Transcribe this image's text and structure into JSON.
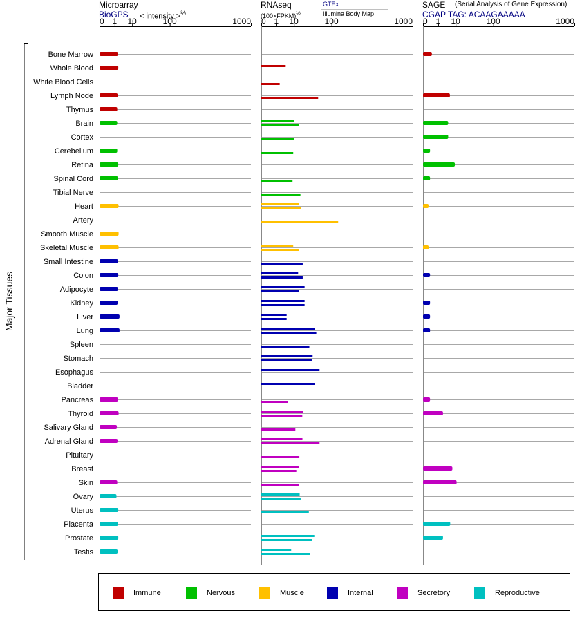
{
  "y_title": "Major Tissues",
  "panels": [
    {
      "title": "Microarray",
      "subtitle": "BioGPS",
      "scale_label": "< intensity >",
      "scale_exp": "⅔",
      "ticks": [
        "0",
        "1",
        "10",
        "100",
        "1000"
      ]
    },
    {
      "title": "RNAseq",
      "subtitle": "(100×FPKM)",
      "subtitle_exp": "½",
      "source_top": "GTEx",
      "source_bottom": "Illumina Body Map",
      "ticks": [
        "0",
        "1",
        "10",
        "100",
        "1000"
      ]
    },
    {
      "title": "SAGE",
      "title_note": "(Serial Analysis of Gene Expression)",
      "subtitle": "CGAP TAG: ACAAGAAAAA",
      "ticks": [
        "0",
        "1",
        "10",
        "100",
        "1000"
      ]
    }
  ],
  "legend": [
    {
      "label": "Immune",
      "color": "#c00000"
    },
    {
      "label": "Nervous",
      "color": "#00c000"
    },
    {
      "label": "Muscle",
      "color": "#ffc000"
    },
    {
      "label": "Internal",
      "color": "#0000b0"
    },
    {
      "label": "Secretory",
      "color": "#c000c0"
    },
    {
      "label": "Reproductive",
      "color": "#00c0c0"
    }
  ],
  "chart_data": {
    "type": "bar",
    "orientation": "horizontal",
    "x_scale": "power",
    "xlim": [
      0,
      1000
    ],
    "x_ticks": [
      0,
      1,
      10,
      100,
      1000
    ],
    "grid": true,
    "legend_position": "bottom",
    "categories": [
      "Bone Marrow",
      "Whole Blood",
      "White Blood Cells",
      "Lymph Node",
      "Thymus",
      "Brain",
      "Cortex",
      "Cerebellum",
      "Retina",
      "Spinal Cord",
      "Tibial Nerve",
      "Heart",
      "Artery",
      "Smooth Muscle",
      "Skeletal Muscle",
      "Small Intestine",
      "Colon",
      "Adipocyte",
      "Kidney",
      "Liver",
      "Lung",
      "Spleen",
      "Stomach",
      "Esophagus",
      "Bladder",
      "Pancreas",
      "Thyroid",
      "Salivary Gland",
      "Adrenal Gland",
      "Pituitary",
      "Breast",
      "Skin",
      "Ovary",
      "Uterus",
      "Placenta",
      "Prostate",
      "Testis"
    ],
    "groups": [
      "Immune",
      "Immune",
      "Immune",
      "Immune",
      "Immune",
      "Nervous",
      "Nervous",
      "Nervous",
      "Nervous",
      "Nervous",
      "Nervous",
      "Muscle",
      "Muscle",
      "Muscle",
      "Muscle",
      "Internal",
      "Internal",
      "Internal",
      "Internal",
      "Internal",
      "Internal",
      "Internal",
      "Internal",
      "Internal",
      "Internal",
      "Secretory",
      "Secretory",
      "Secretory",
      "Secretory",
      "Secretory",
      "Secretory",
      "Secretory",
      "Reproductive",
      "Reproductive",
      "Reproductive",
      "Reproductive",
      "Reproductive"
    ],
    "series": [
      {
        "name": "Microarray",
        "values": [
          1.8,
          1.9,
          null,
          1.7,
          1.6,
          1.6,
          null,
          1.6,
          1.9,
          1.8,
          null,
          2.0,
          null,
          2.0,
          2.0,
          1.8,
          1.9,
          1.8,
          1.7,
          2.3,
          2.3,
          null,
          null,
          null,
          null,
          1.8,
          2.0,
          1.5,
          1.7,
          null,
          null,
          1.6,
          1.4,
          1.9,
          1.8,
          1.9,
          1.7
        ]
      },
      {
        "name": "GTEx",
        "values": [
          null,
          4.2,
          null,
          null,
          null,
          10.4,
          null,
          null,
          null,
          null,
          null,
          15.6,
          null,
          null,
          9.4,
          null,
          14.4,
          23.4,
          23.4,
          4.7,
          45,
          null,
          39,
          57,
          44,
          null,
          21.6,
          null,
          20.1,
          null,
          15.6,
          null,
          16.3,
          null,
          null,
          43,
          7.7
        ]
      },
      {
        "name": "Illumina Body Map",
        "values": [
          null,
          null,
          1.8,
          53,
          null,
          15.1,
          10.4,
          9.4,
          null,
          8.8,
          17.3,
          18.1,
          131,
          null,
          15.3,
          20.5,
          20.5,
          15.3,
          23.4,
          4.7,
          48,
          32,
          37,
          null,
          null,
          5.3,
          19.9,
          11.4,
          57,
          15.9,
          12.4,
          15.6,
          17.6,
          31,
          null,
          38,
          33
        ]
      },
      {
        "name": "SAGE",
        "values": [
          0.2,
          null,
          null,
          5.6,
          null,
          4.6,
          4.6,
          0.1,
          9.3,
          0.1,
          null,
          0.05,
          null,
          null,
          0.05,
          null,
          0.1,
          null,
          0.1,
          0.1,
          0.1,
          null,
          null,
          null,
          null,
          0.1,
          2.3,
          null,
          null,
          null,
          7.3,
          10.9,
          null,
          null,
          5.8,
          2.3,
          null
        ]
      }
    ]
  }
}
